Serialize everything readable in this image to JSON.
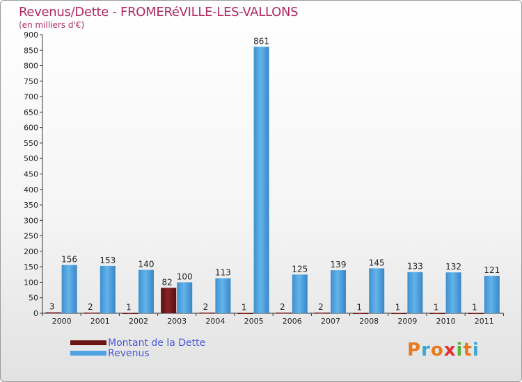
{
  "header": {
    "title": "Revenus/Dette - FROMERéVILLE-LES-VALLONS",
    "subtitle": "(en milliers d'€)"
  },
  "legend": {
    "dette_label": "Montant de la Dette",
    "revenus_label": "Revenus"
  },
  "logo": {
    "letters": [
      "P",
      "r",
      "o",
      "x",
      "i",
      "t",
      "i"
    ]
  },
  "colors": {
    "dette": "#6b1515",
    "revenus": "#4fa3e0",
    "title": "#b02a63",
    "legend_text": "#4a57d6",
    "logo": [
      "#e87a1e",
      "#3aa7d4",
      "#e87a1e",
      "#e03030",
      "#58b53b",
      "#e87a1e",
      "#3aa7d4"
    ]
  },
  "chart_data": {
    "type": "bar",
    "categories": [
      "2000",
      "2001",
      "2002",
      "2003",
      "2004",
      "2005",
      "2006",
      "2007",
      "2008",
      "2009",
      "2010",
      "2011"
    ],
    "series": [
      {
        "name": "Montant de la Dette",
        "values": [
          3,
          2,
          1,
          82,
          2,
          1,
          2,
          2,
          1,
          1,
          1,
          1
        ]
      },
      {
        "name": "Revenus",
        "values": [
          156,
          153,
          140,
          100,
          113,
          861,
          125,
          139,
          145,
          133,
          132,
          121
        ]
      }
    ],
    "yticks": [
      0,
      50,
      100,
      150,
      200,
      250,
      300,
      350,
      400,
      450,
      500,
      550,
      600,
      650,
      700,
      750,
      800,
      850,
      900
    ],
    "ylim": [
      0,
      900
    ],
    "grid": false,
    "legend_position": "bottom-left"
  }
}
